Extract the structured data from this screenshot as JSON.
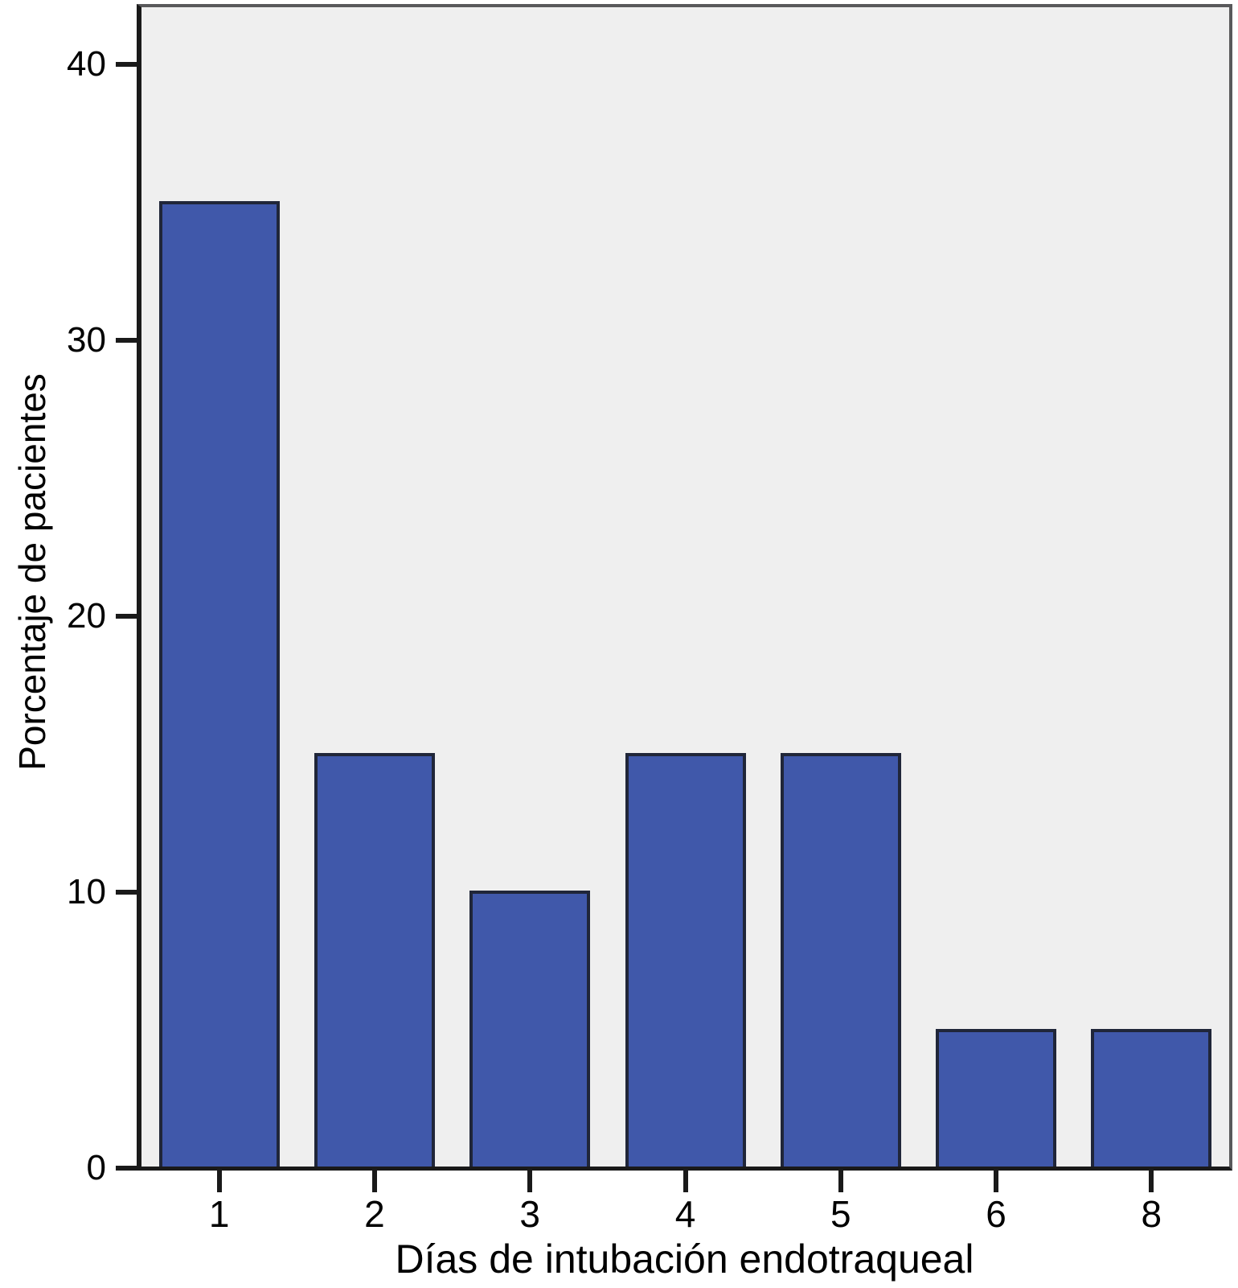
{
  "chart_data": {
    "type": "bar",
    "title": "",
    "categories": [
      "1",
      "2",
      "3",
      "4",
      "5",
      "6",
      "8"
    ],
    "values": [
      35,
      15,
      10,
      15,
      15,
      5,
      5
    ],
    "xlabel": "Días de intubación endotraqueal",
    "ylabel": "Porcentaje de pacientes",
    "yticks": [
      0,
      10,
      20,
      30,
      40
    ],
    "ylim": [
      0,
      42
    ],
    "grid": false,
    "legend": "none",
    "colors": {
      "bar_fill": "#4058aa",
      "bar_border": "#202639",
      "plot_bg": "#efefef",
      "axis": "#1a1a1a",
      "frame": "#59595b",
      "text": "#000000"
    }
  }
}
